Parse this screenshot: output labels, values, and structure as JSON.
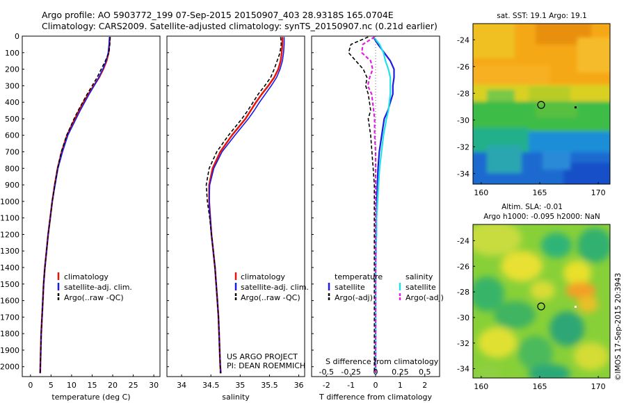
{
  "header": {
    "line1": "Argo profile: AO 5903772_199 07-Sep-2015 20150907_403 28.9318S 165.0704E",
    "line2": "Climatology: CARS2009. Satellite-adjusted climatology: synTS_20150907.nc (0.21d earlier)"
  },
  "depth_axis": {
    "ticks": [
      0,
      100,
      200,
      300,
      400,
      500,
      600,
      700,
      800,
      900,
      1000,
      1100,
      1200,
      1300,
      1400,
      1500,
      1600,
      1700,
      1800,
      1900,
      2000
    ]
  },
  "panels": {
    "temperature": {
      "xlabel": "temperature (deg C)",
      "xticks": [
        "0",
        "5",
        "10",
        "15",
        "20",
        "25",
        "30"
      ],
      "legend": [
        "climatology",
        "satellite-adj. clim.",
        "Argo(..raw -QC)"
      ]
    },
    "salinity": {
      "xlabel": "salinity",
      "xticks": [
        "34",
        "34.5",
        "35",
        "35.5",
        "36"
      ],
      "legend": [
        "climatology",
        "satellite-adj. clim.",
        "Argo(..raw -QC)"
      ],
      "credit1": "US ARGO PROJECT",
      "credit2": "PI: DEAN ROEMMICH"
    },
    "difference": {
      "xlabel": "T difference from climatology",
      "xticks": [
        "-2",
        "-1",
        "0",
        "1",
        "2"
      ],
      "top_label": "S difference from climatology",
      "top_ticks": [
        "-0.5",
        "-0.25",
        "0",
        "0.25",
        "0.5"
      ],
      "legend_t_title": "temperature",
      "legend_t": [
        "satellite",
        "Argo(-adj)"
      ],
      "legend_s_title": "salinity",
      "legend_s": [
        "satellite",
        "Argo(-adj)"
      ]
    }
  },
  "maps": {
    "sst": {
      "title": "sat. SST: 19.1  Argo: 19.1",
      "yticks": [
        "-24",
        "-26",
        "-28",
        "-30",
        "-32",
        "-34"
      ],
      "xticks": [
        "160",
        "165",
        "170"
      ]
    },
    "sla": {
      "title1": "Altim. SLA: -0.01",
      "title2": "Argo h1000: -0.095 h2000: NaN",
      "yticks": [
        "-24",
        "-26",
        "-28",
        "-30",
        "-32",
        "-34"
      ],
      "xticks": [
        "160",
        "165",
        "170"
      ]
    },
    "watermark": "©IMOS 17-Sep-2015 20:3943"
  },
  "colors": {
    "climatology": "#e8140a",
    "satellite": "#1a1ae6",
    "argo": "#000000",
    "salinity_satellite": "#22e0e8",
    "salinity_argo": "#e020e0"
  },
  "chart_data": [
    {
      "type": "line",
      "title": "",
      "xlabel": "temperature (deg C)",
      "ylabel": "",
      "xlim": [
        -2,
        31.5
      ],
      "ylim": [
        2060,
        0
      ],
      "y": [
        5,
        50,
        100,
        150,
        200,
        250,
        300,
        350,
        400,
        450,
        500,
        600,
        700,
        800,
        900,
        1000,
        1100,
        1200,
        1300,
        1400,
        1500,
        1600,
        1700,
        1800,
        1900,
        2000,
        2040
      ],
      "series": [
        {
          "name": "climatology",
          "values": [
            19.3,
            19.2,
            19.0,
            18.5,
            17.7,
            16.7,
            15.4,
            14.1,
            12.9,
            11.8,
            10.8,
            8.9,
            7.6,
            6.6,
            5.9,
            5.3,
            4.8,
            4.3,
            3.9,
            3.5,
            3.2,
            3.0,
            2.8,
            2.6,
            2.5,
            2.4,
            2.35
          ]
        },
        {
          "name": "satellite-adj. clim.",
          "values": [
            19.2,
            19.1,
            18.9,
            18.4,
            17.6,
            16.6,
            15.5,
            14.3,
            13.2,
            12.1,
            11.1,
            9.1,
            7.8,
            6.7,
            6.0,
            5.3,
            4.8,
            4.3,
            3.9,
            3.5,
            3.2,
            3.0,
            2.8,
            2.6,
            2.5,
            2.4,
            2.35
          ]
        },
        {
          "name": "Argo(..raw -QC)",
          "values": [
            19.4,
            19.3,
            19.1,
            18.2,
            17.2,
            16.2,
            15.0,
            13.8,
            12.7,
            11.6,
            10.6,
            8.8,
            7.5,
            6.6,
            5.9,
            5.3,
            4.8,
            4.3,
            3.9,
            3.5,
            3.2,
            3.0,
            2.8,
            2.6,
            2.5,
            2.4,
            2.4
          ]
        }
      ]
    },
    {
      "type": "line",
      "title": "",
      "xlabel": "salinity",
      "ylabel": "",
      "xlim": [
        33.75,
        36.1
      ],
      "ylim": [
        2060,
        0
      ],
      "y": [
        5,
        50,
        100,
        150,
        200,
        250,
        300,
        350,
        400,
        450,
        500,
        600,
        700,
        800,
        900,
        1000,
        1100,
        1200,
        1300,
        1400,
        1500,
        1600,
        1700,
        1800,
        1900,
        2000,
        2040
      ],
      "series": [
        {
          "name": "climatology",
          "values": [
            35.72,
            35.72,
            35.71,
            35.69,
            35.65,
            35.58,
            35.48,
            35.37,
            35.27,
            35.18,
            35.09,
            34.86,
            34.66,
            34.53,
            34.47,
            34.47,
            34.49,
            34.51,
            34.54,
            34.57,
            34.59,
            34.61,
            34.63,
            34.64,
            34.65,
            34.66,
            34.67
          ]
        },
        {
          "name": "satellite-adj. clim.",
          "values": [
            35.75,
            35.75,
            35.74,
            35.72,
            35.68,
            35.62,
            35.53,
            35.43,
            35.33,
            35.24,
            35.14,
            34.91,
            34.69,
            34.55,
            34.48,
            34.47,
            34.49,
            34.51,
            34.54,
            34.57,
            34.59,
            34.61,
            34.63,
            34.64,
            34.65,
            34.66,
            34.67
          ]
        },
        {
          "name": "Argo(..raw -QC)",
          "values": [
            35.69,
            35.7,
            35.68,
            35.63,
            35.58,
            35.52,
            35.42,
            35.31,
            35.22,
            35.13,
            35.03,
            34.8,
            34.6,
            34.47,
            34.42,
            34.44,
            34.48,
            34.51,
            34.54,
            34.57,
            34.59,
            34.61,
            34.63,
            34.64,
            34.65,
            34.66,
            34.66
          ]
        }
      ]
    },
    {
      "type": "line",
      "title": "",
      "xlabel": "T difference from climatology",
      "ylabel": "",
      "xlim": [
        -2.6,
        2.6
      ],
      "ylim": [
        2060,
        0
      ],
      "y": [
        5,
        50,
        100,
        150,
        200,
        250,
        300,
        350,
        400,
        450,
        500,
        600,
        700,
        800,
        900,
        1000,
        1100,
        1200,
        1300,
        1400,
        1500,
        1600,
        1700,
        1800,
        1900,
        2000,
        2040
      ],
      "series": [
        {
          "name": "temperature satellite",
          "values": [
            -0.1,
            0.1,
            0.35,
            0.6,
            0.75,
            0.75,
            0.7,
            0.7,
            0.6,
            0.5,
            0.35,
            0.25,
            0.15,
            0.1,
            0.07,
            0.05,
            0.03,
            0.02,
            0.01,
            0,
            0,
            0,
            0,
            0,
            0,
            0,
            0
          ]
        },
        {
          "name": "temperature Argo(-adj)",
          "values": [
            -0.3,
            -1.0,
            -1.1,
            -0.8,
            -0.5,
            -0.35,
            -0.4,
            -0.3,
            -0.25,
            -0.2,
            -0.3,
            -0.2,
            -0.15,
            -0.1,
            -0.05,
            -0.05,
            -0.05,
            -0.05,
            -0.05,
            -0.05,
            -0.05,
            -0.05,
            -0.05,
            -0.05,
            -0.05,
            -0.05,
            -0.05
          ]
        },
        {
          "name": "salinity satellite",
          "values": [
            -0.02,
            0.04,
            0.08,
            0.1,
            0.13,
            0.15,
            0.15,
            0.15,
            0.14,
            0.13,
            0.11,
            0.08,
            0.06,
            0.04,
            0.03,
            0.02,
            0.01,
            0.01,
            0,
            0,
            0,
            0,
            0,
            0,
            0,
            0,
            0
          ]
        },
        {
          "name": "salinity Argo(-adj)",
          "values": [
            -0.01,
            -0.13,
            -0.14,
            -0.05,
            -0.03,
            -0.06,
            -0.08,
            -0.04,
            -0.03,
            -0.02,
            -0.01,
            -0.01,
            0,
            0,
            0,
            0,
            0,
            0,
            0,
            0,
            0,
            0,
            0,
            0,
            0,
            0,
            0
          ]
        }
      ]
    }
  ]
}
